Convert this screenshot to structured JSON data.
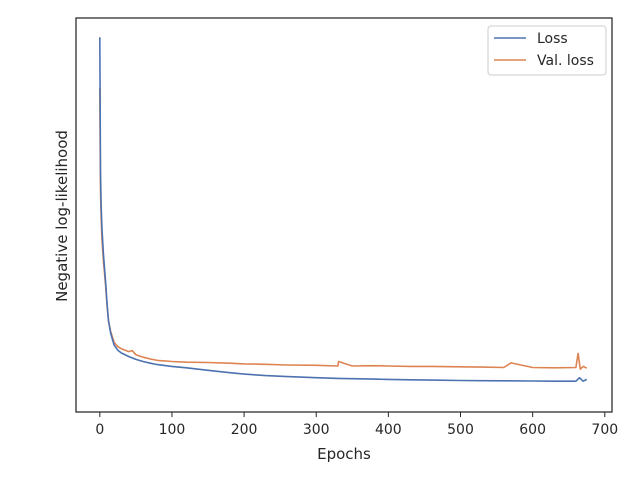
{
  "chart_data": {
    "type": "line",
    "title": "",
    "xlabel": "Epochs",
    "ylabel": "Negative log-likelihood",
    "xlim": [
      -33,
      710
    ],
    "ylim": [
      0,
      1
    ],
    "xticks": [
      0,
      100,
      200,
      300,
      400,
      500,
      600,
      700
    ],
    "yticks_labeled": false,
    "grid": false,
    "legend_position": "top-right",
    "series": [
      {
        "name": "Loss",
        "color": "#4c72b0",
        "x": [
          0,
          1,
          2,
          3,
          5,
          8,
          10,
          12,
          15,
          18,
          20,
          25,
          30,
          40,
          50,
          60,
          70,
          80,
          100,
          120,
          150,
          180,
          200,
          230,
          260,
          300,
          330,
          350,
          380,
          400,
          430,
          460,
          500,
          530,
          560,
          600,
          630,
          660,
          665,
          670,
          675
        ],
        "y": [
          0.985,
          0.6,
          0.5,
          0.44,
          0.37,
          0.29,
          0.23,
          0.18,
          0.145,
          0.123,
          0.11,
          0.096,
          0.088,
          0.078,
          0.07,
          0.064,
          0.059,
          0.055,
          0.05,
          0.046,
          0.039,
          0.032,
          0.028,
          0.024,
          0.021,
          0.018,
          0.016,
          0.015,
          0.014,
          0.013,
          0.012,
          0.011,
          0.01,
          0.0095,
          0.009,
          0.0085,
          0.008,
          0.008,
          0.018,
          0.008,
          0.013
        ]
      },
      {
        "name": "Val. loss",
        "color": "#dd8452",
        "x": [
          0,
          1,
          2,
          3,
          5,
          8,
          10,
          12,
          15,
          18,
          20,
          25,
          30,
          40,
          45,
          50,
          60,
          70,
          80,
          100,
          120,
          150,
          180,
          200,
          230,
          260,
          300,
          330,
          331,
          350,
          380,
          400,
          430,
          460,
          500,
          530,
          560,
          570,
          600,
          630,
          660,
          663,
          666,
          670,
          675
        ],
        "y": [
          0.84,
          0.55,
          0.47,
          0.41,
          0.35,
          0.28,
          0.225,
          0.178,
          0.15,
          0.13,
          0.118,
          0.106,
          0.1,
          0.092,
          0.095,
          0.083,
          0.076,
          0.071,
          0.067,
          0.064,
          0.062,
          0.061,
          0.059,
          0.057,
          0.056,
          0.054,
          0.053,
          0.051,
          0.064,
          0.051,
          0.052,
          0.051,
          0.05,
          0.05,
          0.049,
          0.048,
          0.047,
          0.06,
          0.047,
          0.046,
          0.047,
          0.087,
          0.042,
          0.05,
          0.045
        ]
      }
    ]
  }
}
